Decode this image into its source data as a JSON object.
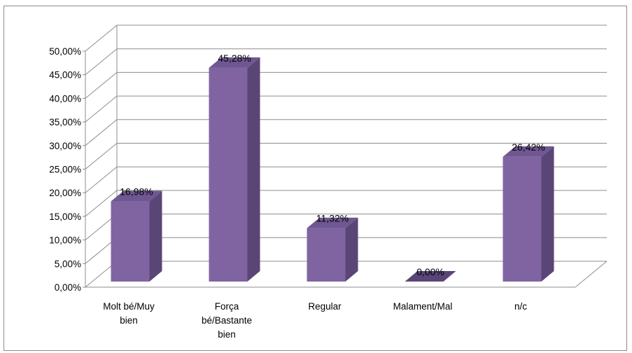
{
  "chart_data": {
    "type": "bar",
    "style": "3d-column",
    "categories": [
      [
        "Molt bé/Muy",
        "bien"
      ],
      [
        "Força",
        "bé/Bastante",
        "bien"
      ],
      [
        "Regular"
      ],
      [
        "Malament/Mal"
      ],
      [
        "n/c"
      ]
    ],
    "values": [
      16.98,
      45.28,
      11.32,
      0.0,
      26.42
    ],
    "data_labels": [
      "16,98%",
      "45,28%",
      "11,32%",
      "0,00%",
      "26,42%"
    ],
    "yticks": [
      "0,00%",
      "5,00%",
      "10,00%",
      "15,00%",
      "20,00%",
      "25,00%",
      "30,00%",
      "35,00%",
      "40,00%",
      "45,00%",
      "50,00%"
    ],
    "ylim": [
      0,
      50
    ],
    "title": "",
    "xlabel": "",
    "ylabel": "",
    "grid": true,
    "legend": "none",
    "colors": {
      "bar_front": "#8064a2",
      "bar_side": "#5a4577",
      "bar_top": "#6f5791",
      "gridline": "#8c8c8c",
      "frame": "#8c8c8c"
    }
  }
}
